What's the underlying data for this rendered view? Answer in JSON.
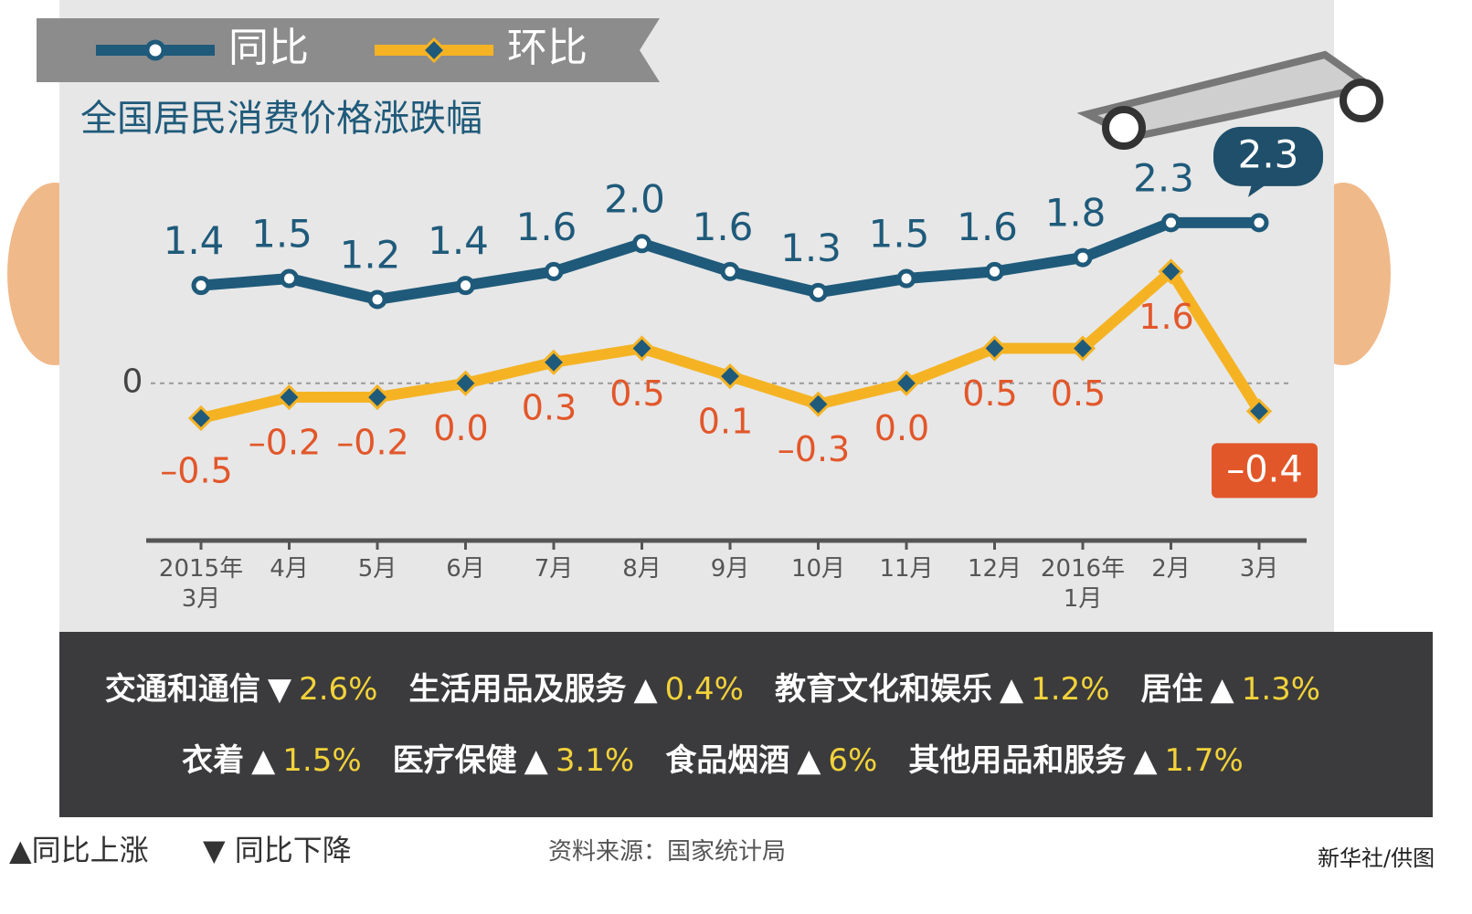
{
  "chart_data": {
    "type": "line",
    "title": "全国居民消费价格涨跌幅",
    "categories": [
      "2015年\n3月",
      "4月",
      "5月",
      "6月",
      "7月",
      "8月",
      "9月",
      "10月",
      "11月",
      "12月",
      "2016年\n1月",
      "2月",
      "3月"
    ],
    "series": [
      {
        "name": "同比",
        "color": "#1f5a7a",
        "label_color": "#1f5a7a",
        "values": [
          1.4,
          1.5,
          1.2,
          1.4,
          1.6,
          2.0,
          1.6,
          1.3,
          1.5,
          1.6,
          1.8,
          2.3,
          2.3
        ],
        "value_labels": [
          "1.4",
          "1.5",
          "1.2",
          "1.4",
          "1.6",
          "2.0",
          "1.6",
          "1.3",
          "1.5",
          "1.6",
          "1.8",
          "2.3",
          "2.3"
        ]
      },
      {
        "name": "环比",
        "color": "#f5b324",
        "label_color": "#e2572a",
        "values": [
          -0.5,
          -0.2,
          -0.2,
          0.0,
          0.3,
          0.5,
          0.1,
          -0.3,
          0.0,
          0.5,
          0.5,
          1.6,
          -0.4
        ],
        "value_labels": [
          "–0.5",
          "–0.2",
          "–0.2",
          "0.0",
          "0.3",
          "0.5",
          "0.1",
          "–0.3",
          "0.0",
          "0.5",
          "0.5",
          "1.6",
          "–0.4"
        ]
      }
    ],
    "ylim": [
      -2.2,
      3.2
    ],
    "yticks": [
      0
    ],
    "grid": true
  },
  "breakdown": [
    [
      {
        "name": "交通和通信",
        "arrow": "▼",
        "change": "2.6%"
      },
      {
        "name": "生活用品及服务",
        "arrow": "▲",
        "change": "0.4%"
      },
      {
        "name": "教育文化和娱乐",
        "arrow": "▲",
        "change": "1.2%"
      },
      {
        "name": "居住",
        "arrow": "▲",
        "change": "1.3%"
      }
    ],
    [
      {
        "name": "衣着",
        "arrow": "▲",
        "change": "1.5%"
      },
      {
        "name": "医疗保健",
        "arrow": "▲",
        "change": "3.1%"
      },
      {
        "name": "食品烟酒",
        "arrow": "▲",
        "change": "6%"
      },
      {
        "name": "其他用品和服务",
        "arrow": "▲",
        "change": "1.7%"
      }
    ]
  ],
  "footer": {
    "up": "▲同比上涨",
    "down": "▼ 同比下降",
    "source": "资料来源：国家统计局",
    "credit": "新华社/供图"
  }
}
